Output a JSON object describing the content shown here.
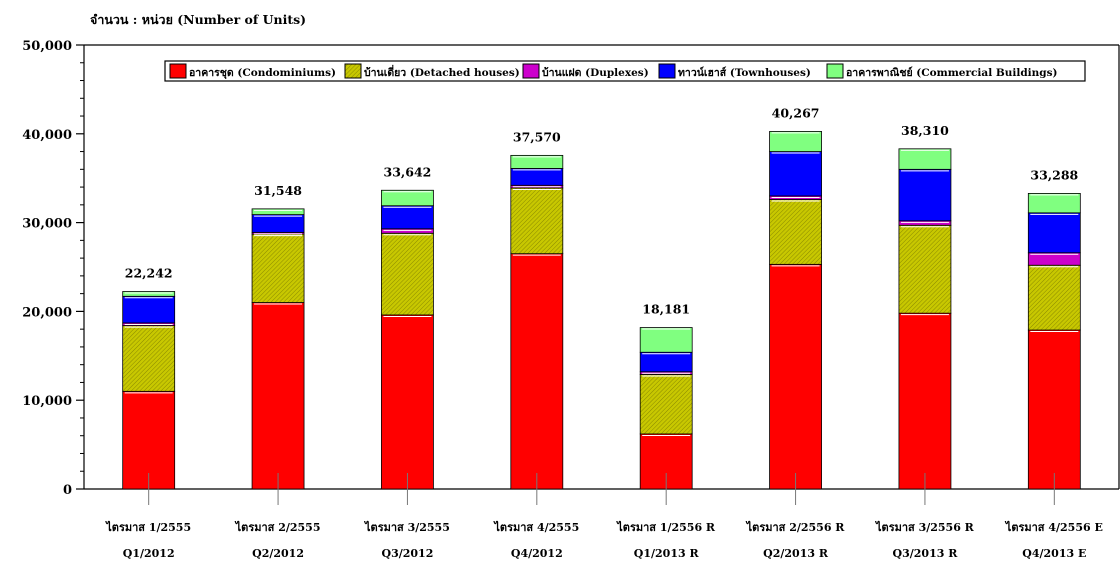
{
  "chart_data": {
    "type": "bar",
    "stacked": true,
    "title": "",
    "ylabel": "จำนวน : หน่วย (Number of Units)",
    "xlabel": "",
    "ylim": [
      0,
      50000
    ],
    "yticks": [
      0,
      10000,
      20000,
      30000,
      40000,
      50000
    ],
    "ytick_labels": [
      "0",
      "10,000",
      "20,000",
      "30,000",
      "40,000",
      "50,000"
    ],
    "grid": false,
    "legend_position": "top",
    "categories": [
      [
        "ไตรมาส 1/2555",
        "Q1/2012"
      ],
      [
        "ไตรมาส 2/2555",
        "Q2/2012"
      ],
      [
        "ไตรมาส 3/2555",
        "Q3/2012"
      ],
      [
        "ไตรมาส 4/2555",
        "Q4/2012"
      ],
      [
        "ไตรมาส 1/2556 R",
        "Q1/2013 R"
      ],
      [
        "ไตรมาส 2/2556 R",
        "Q2/2013 R"
      ],
      [
        "ไตรมาส 3/2556 R",
        "Q3/2013 R"
      ],
      [
        "ไตรมาส 4/2556 E",
        "Q4/2013 E"
      ]
    ],
    "series": [
      {
        "name": "อาคารชุด (Condominiums)",
        "color": "#ff0000",
        "values": [
          11000,
          21000,
          19600,
          26500,
          6200,
          25300,
          19800,
          17900
        ]
      },
      {
        "name": "บ้านเดี่ยว (Detached houses)",
        "color": "#c8c800",
        "values": [
          7400,
          7700,
          9200,
          7400,
          6700,
          7300,
          9900,
          7300
        ]
      },
      {
        "name": "บ้านแฝด (Duplexes)",
        "color": "#cc00cc",
        "values": [
          300,
          200,
          500,
          300,
          300,
          400,
          500,
          1400
        ]
      },
      {
        "name": "ทาวน์เฮาส์ (Townhouses)",
        "color": "#0000ff",
        "values": [
          3000,
          2000,
          2600,
          1900,
          2200,
          5000,
          5800,
          4500
        ]
      },
      {
        "name": "อาคารพาณิชย์ (Commercial Buildings)",
        "color": "#80ff80",
        "values": [
          542,
          648,
          1742,
          1470,
          2781,
          2267,
          2310,
          2188
        ]
      }
    ],
    "totals": [
      22242,
      31548,
      33642,
      37570,
      18181,
      40267,
      38310,
      33288
    ],
    "total_labels": [
      "22,242",
      "31,548",
      "33,642",
      "37,570",
      "18,181",
      "40,267",
      "38,310",
      "33,288"
    ]
  }
}
